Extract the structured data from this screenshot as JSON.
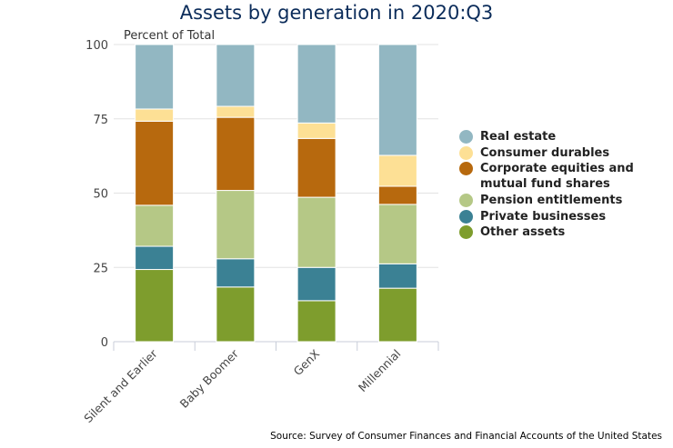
{
  "chart_data": {
    "type": "bar",
    "stacked": true,
    "title": "Assets by generation in 2020:Q3",
    "ylabel": "Percent of Total",
    "ylim": [
      0,
      100
    ],
    "yticks": [
      0,
      25,
      50,
      75,
      100
    ],
    "categories": [
      "Silent and Earlier",
      "Baby Boomer",
      "GenX",
      "Millennial"
    ],
    "series": [
      {
        "name": "Other assets",
        "color": "#7e9d2d",
        "values": [
          24.3,
          18.4,
          13.8,
          18.0
        ]
      },
      {
        "name": "Private businesses",
        "color": "#3b8194",
        "values": [
          7.8,
          9.5,
          11.2,
          8.2
        ]
      },
      {
        "name": "Pension entitlements",
        "color": "#b5c886",
        "values": [
          13.8,
          23.0,
          23.6,
          20.0
        ]
      },
      {
        "name": "Corporate equities and mutual fund shares",
        "color": "#b7690e",
        "values": [
          28.3,
          24.6,
          19.8,
          6.1
        ]
      },
      {
        "name": "Consumer durables",
        "color": "#fde095",
        "values": [
          4.1,
          3.7,
          5.2,
          10.4
        ]
      },
      {
        "name": "Real estate",
        "color": "#92b7c2",
        "values": [
          21.7,
          20.8,
          26.4,
          37.3
        ]
      }
    ],
    "legend": {
      "position": "right",
      "order": [
        "Real estate",
        "Consumer durables",
        "Corporate equities and\nmutual fund shares",
        "Pension entitlements",
        "Private businesses",
        "Other assets"
      ]
    },
    "grid": true,
    "source": "Source: Survey of Consumer Finances and Financial Accounts of the United States"
  }
}
